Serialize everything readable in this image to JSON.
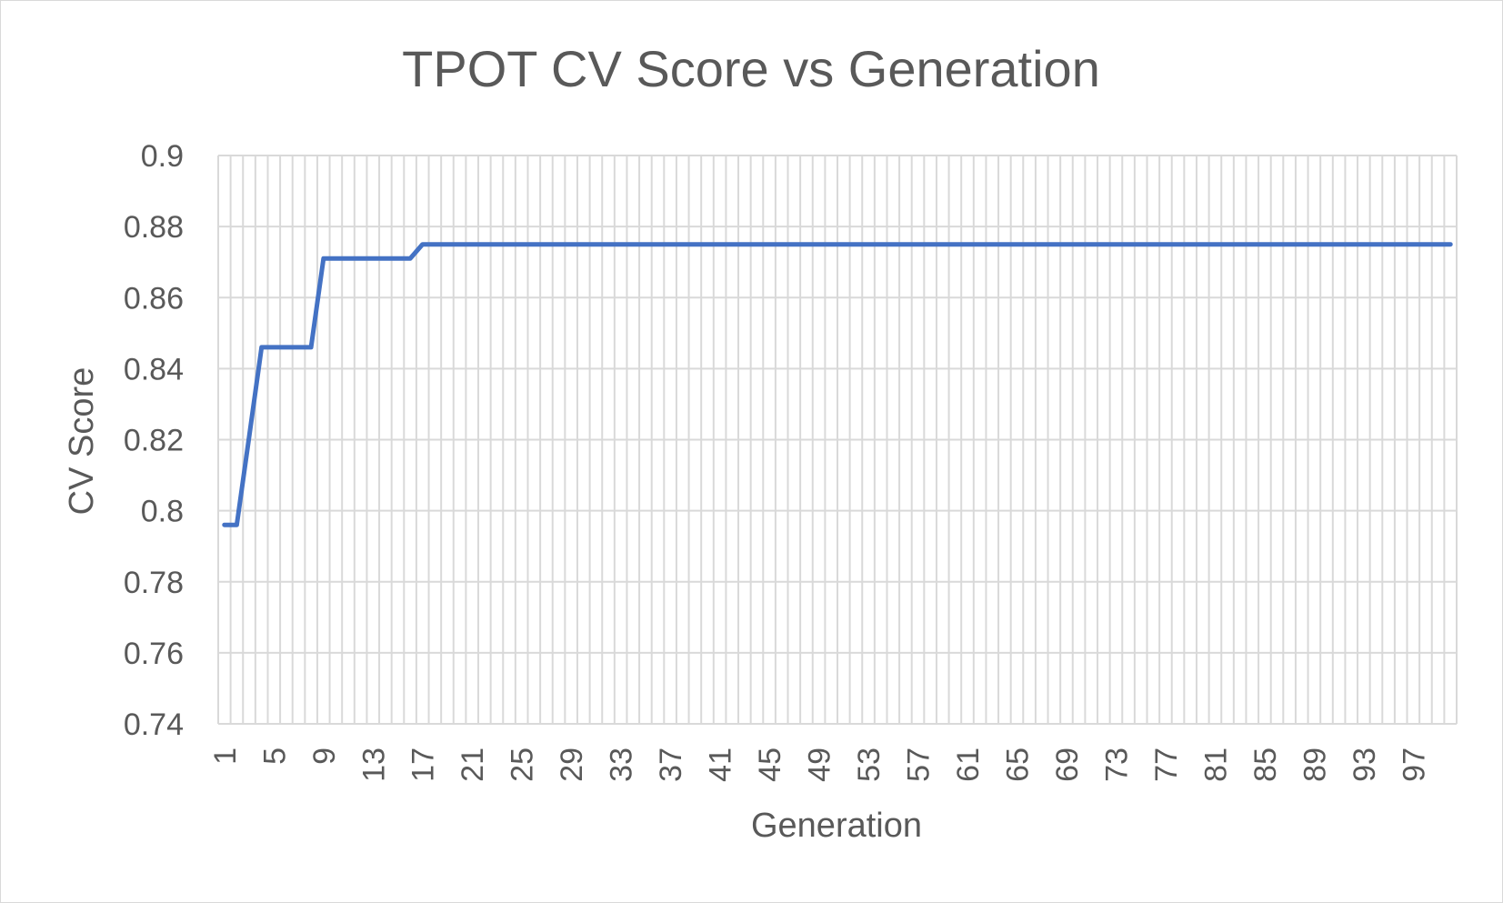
{
  "chart_data": {
    "type": "line",
    "title": "TPOT CV Score vs Generation",
    "xlabel": "Generation",
    "ylabel": "CV Score",
    "ylim": [
      0.74,
      0.9
    ],
    "yticks": [
      "0.9",
      "0.88",
      "0.86",
      "0.84",
      "0.82",
      "0.8",
      "0.78",
      "0.76",
      "0.74"
    ],
    "x_tick_labels": [
      "1",
      "5",
      "9",
      "13",
      "17",
      "21",
      "25",
      "29",
      "33",
      "37",
      "41",
      "45",
      "49",
      "53",
      "57",
      "61",
      "65",
      "69",
      "73",
      "77",
      "81",
      "85",
      "89",
      "93",
      "97"
    ],
    "grid": true,
    "color": "#4472c4",
    "series": [
      {
        "x": [
          1,
          2,
          3,
          4,
          5,
          6,
          7,
          8,
          9,
          10,
          11,
          12,
          13,
          14,
          15,
          16,
          17,
          18,
          19,
          20,
          21,
          22,
          23,
          24,
          25,
          26,
          27,
          28,
          29,
          30,
          31,
          32,
          33,
          34,
          35,
          36,
          37,
          38,
          39,
          40,
          41,
          42,
          43,
          44,
          45,
          46,
          47,
          48,
          49,
          50,
          51,
          52,
          53,
          54,
          55,
          56,
          57,
          58,
          59,
          60,
          61,
          62,
          63,
          64,
          65,
          66,
          67,
          68,
          69,
          70,
          71,
          72,
          73,
          74,
          75,
          76,
          77,
          78,
          79,
          80,
          81,
          82,
          83,
          84,
          85,
          86,
          87,
          88,
          89,
          90,
          91,
          92,
          93,
          94,
          95,
          96,
          97,
          98,
          99,
          100
        ],
        "values": [
          0.796,
          0.796,
          0.821,
          0.846,
          0.846,
          0.846,
          0.846,
          0.846,
          0.871,
          0.871,
          0.871,
          0.871,
          0.871,
          0.871,
          0.871,
          0.871,
          0.875,
          0.875,
          0.875,
          0.875,
          0.875,
          0.875,
          0.875,
          0.875,
          0.875,
          0.875,
          0.875,
          0.875,
          0.875,
          0.875,
          0.875,
          0.875,
          0.875,
          0.875,
          0.875,
          0.875,
          0.875,
          0.875,
          0.875,
          0.875,
          0.875,
          0.875,
          0.875,
          0.875,
          0.875,
          0.875,
          0.875,
          0.875,
          0.875,
          0.875,
          0.875,
          0.875,
          0.875,
          0.875,
          0.875,
          0.875,
          0.875,
          0.875,
          0.875,
          0.875,
          0.875,
          0.875,
          0.875,
          0.875,
          0.875,
          0.875,
          0.875,
          0.875,
          0.875,
          0.875,
          0.875,
          0.875,
          0.875,
          0.875,
          0.875,
          0.875,
          0.875,
          0.875,
          0.875,
          0.875,
          0.875,
          0.875,
          0.875,
          0.875,
          0.875,
          0.875,
          0.875,
          0.875,
          0.875,
          0.875,
          0.875,
          0.875,
          0.875,
          0.875,
          0.875,
          0.875,
          0.875,
          0.875,
          0.875,
          0.875
        ]
      }
    ]
  }
}
